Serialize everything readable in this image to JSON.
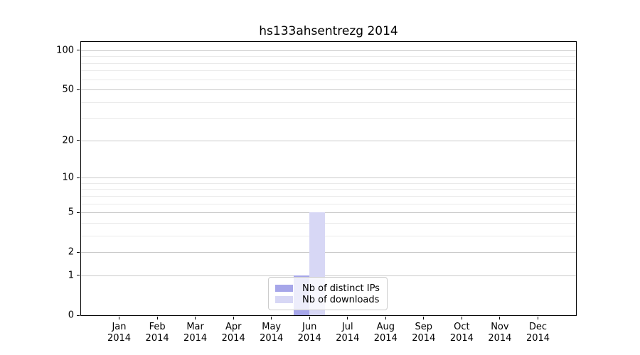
{
  "chart_data": {
    "type": "bar",
    "title": "hs133ahsentrezg 2014",
    "xlabel": "",
    "ylabel": "",
    "x_tick_months": [
      "Jan",
      "Feb",
      "Mar",
      "Apr",
      "May",
      "Jun",
      "Jul",
      "Aug",
      "Sep",
      "Oct",
      "Nov",
      "Dec"
    ],
    "x_tick_year": "2014",
    "series": [
      {
        "name": "Nb of distinct IPs",
        "color": "#a6a6e9",
        "values": [
          0,
          0,
          0,
          0,
          0,
          1,
          0,
          0,
          0,
          0,
          0,
          0
        ]
      },
      {
        "name": "Nb of downloads",
        "color": "#d7d7f5",
        "values": [
          0,
          0,
          0,
          0,
          0,
          5,
          0,
          0,
          0,
          0,
          0,
          0
        ]
      }
    ],
    "y_scale": "log10(1+x)",
    "y_major_ticks": [
      0,
      1,
      2,
      5,
      10,
      20,
      50,
      100
    ],
    "y_minor_ticks": [
      3,
      4,
      6,
      7,
      8,
      9,
      30,
      40,
      60,
      70,
      80,
      90
    ],
    "ylim": [
      0,
      116
    ],
    "grid": "on",
    "legend_position": "lower center",
    "colors": {
      "axis_frame": "#000000",
      "grid_major": "#c9c9c9",
      "grid_minor": "#eaeaea",
      "background": "#ffffff",
      "legend_border": "#cccccc"
    }
  }
}
